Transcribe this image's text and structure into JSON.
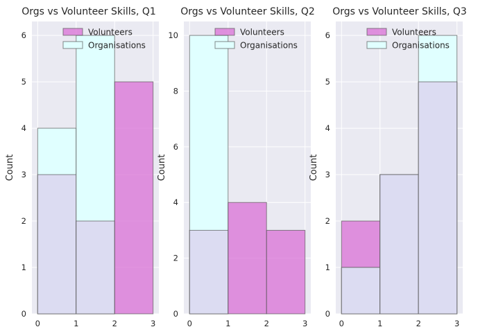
{
  "chart_data": [
    {
      "type": "histogram",
      "title": "Orgs vs Volunteer Skills, Q1",
      "xlabel": "",
      "ylabel": "Count",
      "bins": [
        0,
        1,
        2,
        3
      ],
      "xticks": [
        "0",
        "1",
        "2",
        "3"
      ],
      "ylim": [
        0,
        6.3
      ],
      "yticks": [
        "0",
        "1",
        "2",
        "3",
        "4",
        "5",
        "6"
      ],
      "grid": true,
      "legend_position": "top-right",
      "series": [
        {
          "name": "Volunteers",
          "values": [
            3,
            2,
            5
          ],
          "color": "#da70d6"
        },
        {
          "name": "Organisations",
          "values": [
            4,
            6,
            0
          ],
          "color": "#e0ffff"
        }
      ]
    },
    {
      "type": "histogram",
      "title": "Orgs vs Volunteer Skills, Q2",
      "xlabel": "",
      "ylabel": "Count",
      "bins": [
        0,
        1,
        2,
        3
      ],
      "xticks": [
        "0",
        "1",
        "2",
        "3"
      ],
      "ylim": [
        0,
        10.5
      ],
      "yticks": [
        "0",
        "2",
        "4",
        "6",
        "8",
        "10"
      ],
      "grid": true,
      "legend_position": "top-right",
      "series": [
        {
          "name": "Volunteers",
          "values": [
            3,
            4,
            3
          ],
          "color": "#da70d6"
        },
        {
          "name": "Organisations",
          "values": [
            10,
            0,
            0
          ],
          "color": "#e0ffff"
        }
      ]
    },
    {
      "type": "histogram",
      "title": "Orgs vs Volunteer Skills, Q3",
      "xlabel": "",
      "ylabel": "Count",
      "bins": [
        0,
        1,
        2,
        3
      ],
      "xticks": [
        "0",
        "1",
        "2",
        "3"
      ],
      "ylim": [
        0,
        6.3
      ],
      "yticks": [
        "0",
        "1",
        "2",
        "3",
        "4",
        "5",
        "6"
      ],
      "grid": true,
      "legend_position": "top-right",
      "series": [
        {
          "name": "Volunteers",
          "values": [
            2,
            3,
            5
          ],
          "color": "#da70d6"
        },
        {
          "name": "Organisations",
          "values": [
            1,
            3,
            6
          ],
          "color": "#e0ffff"
        }
      ]
    }
  ],
  "colors": {
    "axes_background": "#eaeaf2",
    "grid": "#ffffff",
    "overlap": "#dcdcf2",
    "bar_edge": "#555555"
  }
}
